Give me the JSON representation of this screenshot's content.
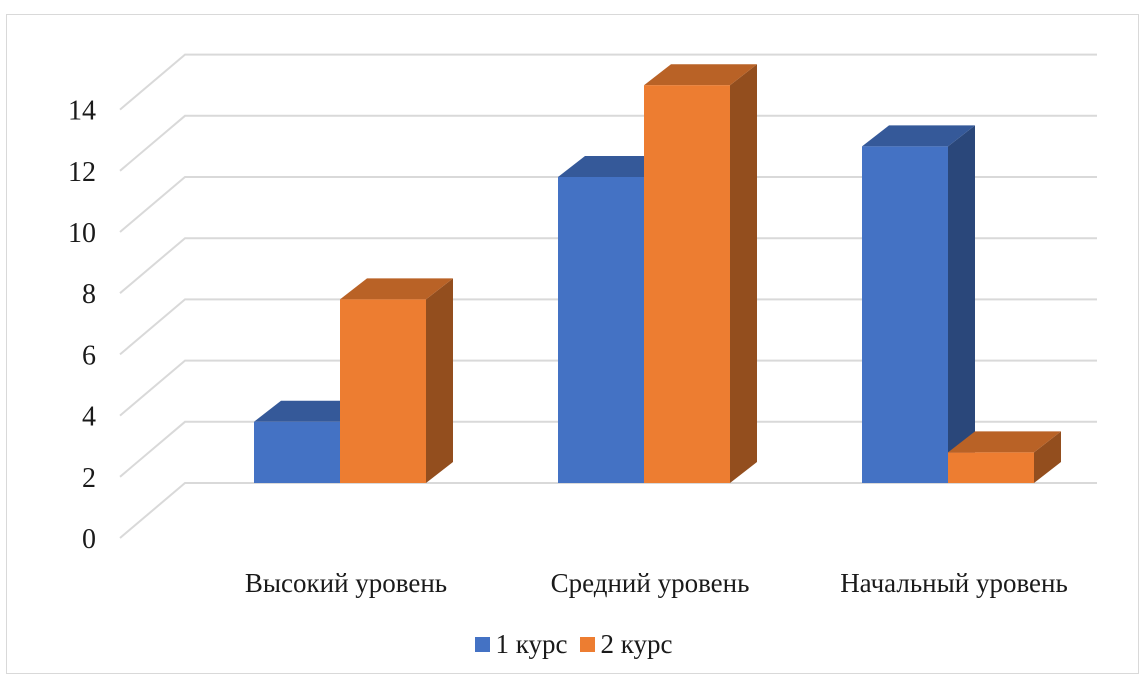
{
  "chart_data": {
    "type": "bar",
    "categories": [
      "Высокий уровень",
      "Средний уровень",
      "Начальный уровень"
    ],
    "series": [
      {
        "name": "1 курс",
        "values": [
          2,
          10,
          11
        ],
        "color": "#4472C4"
      },
      {
        "name": "2 курс",
        "values": [
          6,
          13,
          1
        ],
        "color": "#ED7D31"
      }
    ],
    "y_ticks": [
      "0",
      "2",
      "4",
      "6",
      "8",
      "10",
      "12",
      "14"
    ],
    "ylim": [
      0,
      15
    ],
    "grid": true,
    "three_d": true,
    "legend_position": "bottom"
  }
}
